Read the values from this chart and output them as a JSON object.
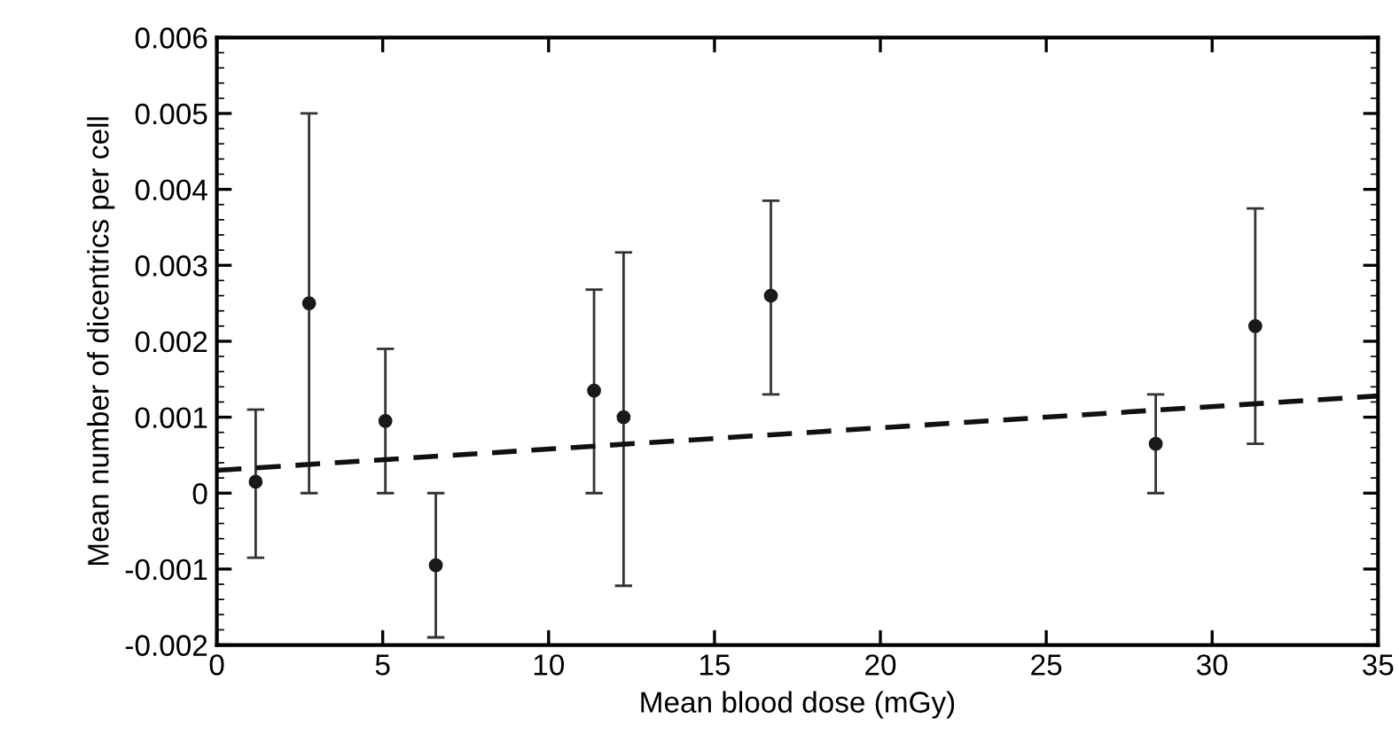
{
  "chart_data": {
    "type": "scatter",
    "xlabel": "Mean blood dose (mGy)",
    "ylabel": "Mean number of dicentrics per cell",
    "xlim": [
      0,
      35
    ],
    "xticks": [
      0,
      5,
      10,
      15,
      20,
      25,
      30,
      35
    ],
    "ylim": [
      -0.002,
      0.006
    ],
    "yticks": [
      -0.002,
      -0.001,
      0,
      0.001,
      0.002,
      0.003,
      0.004,
      0.005,
      0.006
    ],
    "grid": false,
    "legend": false,
    "marker": "circle",
    "series": [
      {
        "color": "#1a1a1a",
        "x": [
          1.17,
          2.78,
          5.08,
          6.6,
          11.37,
          12.26,
          16.7,
          28.3,
          31.3
        ],
        "values": [
          0.00015,
          0.0025,
          0.00095,
          -0.00095,
          0.00135,
          0.001,
          0.0026,
          0.00065,
          0.0022
        ],
        "errors": [
          [
            -0.00085,
            0.0011
          ],
          [
            0,
            0.005
          ],
          [
            0,
            0.0019
          ],
          [
            -0.0019,
            0
          ],
          [
            0,
            0.00268
          ],
          [
            -0.00122,
            0.00317
          ],
          [
            0.0013,
            0.00385
          ],
          [
            0,
            0.0013
          ],
          [
            0.00065,
            0.00375
          ]
        ]
      },
      {
        "type": "line",
        "color": "#111111",
        "line_style": "dashed",
        "marker": "none",
        "x": [
          0,
          35
        ],
        "values": [
          0.0003,
          0.00128
        ]
      }
    ]
  }
}
